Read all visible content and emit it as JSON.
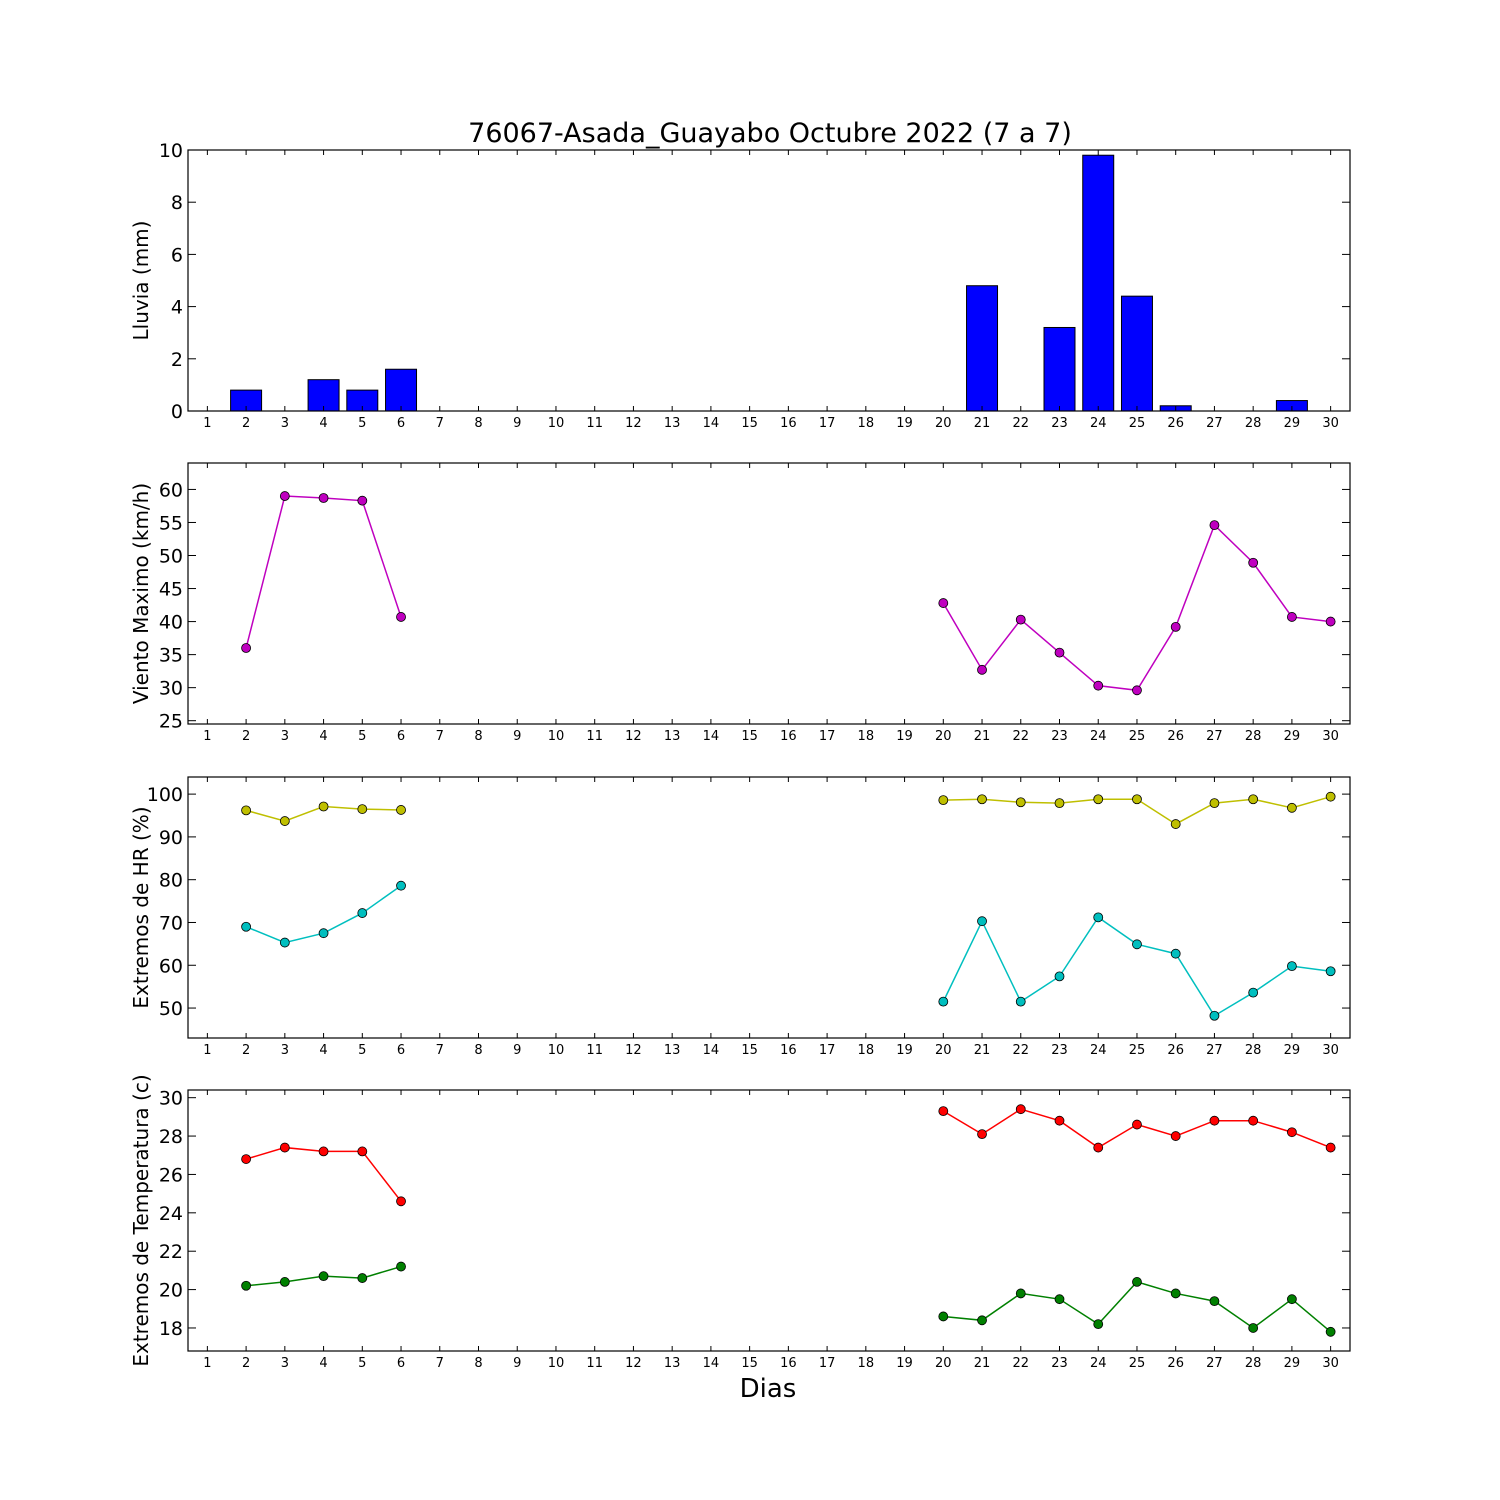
{
  "title": "76067-Asada_Guayabo Octubre 2022  (7 a 7)",
  "xlabel": "Dias",
  "colors": {
    "rain": "#0000ff",
    "wind": "#bf00bf",
    "hr_max": "#bfbf00",
    "hr_min": "#00bfbf",
    "temp_max": "#ff0000",
    "temp_min": "#008000"
  },
  "chart_data": [
    {
      "type": "bar",
      "ylabel": "Lluvia (mm)",
      "ylim": [
        0,
        10
      ],
      "yticks": [
        0,
        2,
        4,
        6,
        8,
        10
      ],
      "xlim": [
        0.5,
        30.5
      ],
      "x": [
        1,
        2,
        3,
        4,
        5,
        6,
        7,
        8,
        9,
        10,
        11,
        12,
        13,
        14,
        15,
        16,
        17,
        18,
        19,
        20,
        21,
        22,
        23,
        24,
        25,
        26,
        27,
        28,
        29,
        30
      ],
      "series": [
        {
          "color": "#0000ff",
          "values": [
            0,
            0.8,
            0,
            1.2,
            0.8,
            1.6,
            null,
            null,
            null,
            null,
            null,
            null,
            null,
            null,
            null,
            null,
            null,
            null,
            null,
            0,
            4.8,
            0,
            3.2,
            9.8,
            4.4,
            0.2,
            0,
            0,
            0.4,
            0
          ]
        }
      ]
    },
    {
      "type": "line",
      "ylabel": "Viento Maximo (km/h)",
      "ylim": [
        24.5,
        64
      ],
      "yticks": [
        25,
        30,
        35,
        40,
        45,
        50,
        55,
        60
      ],
      "xlim": [
        0.5,
        30.5
      ],
      "x": [
        1,
        2,
        3,
        4,
        5,
        6,
        7,
        8,
        9,
        10,
        11,
        12,
        13,
        14,
        15,
        16,
        17,
        18,
        19,
        20,
        21,
        22,
        23,
        24,
        25,
        26,
        27,
        28,
        29,
        30
      ],
      "series": [
        {
          "color": "#bf00bf",
          "values": [
            null,
            36.0,
            59.0,
            58.7,
            58.3,
            40.7,
            null,
            null,
            null,
            null,
            null,
            null,
            null,
            null,
            null,
            null,
            null,
            null,
            null,
            42.8,
            32.7,
            40.3,
            35.3,
            30.3,
            29.6,
            39.2,
            54.6,
            48.9,
            40.7,
            40.0
          ]
        }
      ]
    },
    {
      "type": "line",
      "ylabel": "Extremos de HR (%)",
      "ylim": [
        43,
        104
      ],
      "yticks": [
        50,
        60,
        70,
        80,
        90,
        100
      ],
      "xlim": [
        0.5,
        30.5
      ],
      "x": [
        1,
        2,
        3,
        4,
        5,
        6,
        7,
        8,
        9,
        10,
        11,
        12,
        13,
        14,
        15,
        16,
        17,
        18,
        19,
        20,
        21,
        22,
        23,
        24,
        25,
        26,
        27,
        28,
        29,
        30
      ],
      "series": [
        {
          "color": "#bfbf00",
          "values": [
            null,
            96.2,
            93.7,
            97.1,
            96.5,
            96.3,
            null,
            null,
            null,
            null,
            null,
            null,
            null,
            null,
            null,
            null,
            null,
            null,
            null,
            98.6,
            98.8,
            98.1,
            97.9,
            98.8,
            98.8,
            93.0,
            97.9,
            98.8,
            96.8,
            99.4
          ]
        },
        {
          "color": "#00bfbf",
          "values": [
            null,
            69.0,
            65.3,
            67.5,
            72.2,
            78.6,
            null,
            null,
            null,
            null,
            null,
            null,
            null,
            null,
            null,
            null,
            null,
            null,
            null,
            51.5,
            70.3,
            51.5,
            57.4,
            71.2,
            64.9,
            62.7,
            48.2,
            53.6,
            59.8,
            58.6
          ]
        }
      ]
    },
    {
      "type": "line",
      "ylabel": "Extremos de Temperatura (c)",
      "ylim": [
        16.8,
        30.4
      ],
      "yticks": [
        18,
        20,
        22,
        24,
        26,
        28,
        30
      ],
      "xlim": [
        0.5,
        30.5
      ],
      "x": [
        1,
        2,
        3,
        4,
        5,
        6,
        7,
        8,
        9,
        10,
        11,
        12,
        13,
        14,
        15,
        16,
        17,
        18,
        19,
        20,
        21,
        22,
        23,
        24,
        25,
        26,
        27,
        28,
        29,
        30
      ],
      "series": [
        {
          "color": "#ff0000",
          "values": [
            null,
            26.8,
            27.4,
            27.2,
            27.2,
            24.6,
            null,
            null,
            null,
            null,
            null,
            null,
            null,
            null,
            null,
            null,
            null,
            null,
            null,
            29.3,
            28.1,
            29.4,
            28.8,
            27.4,
            28.6,
            28.0,
            28.8,
            28.8,
            28.2,
            27.4
          ]
        },
        {
          "color": "#008000",
          "values": [
            null,
            20.2,
            20.4,
            20.7,
            20.6,
            21.2,
            null,
            null,
            null,
            null,
            null,
            null,
            null,
            null,
            null,
            null,
            null,
            null,
            null,
            18.6,
            18.4,
            19.8,
            19.5,
            18.2,
            20.4,
            19.8,
            19.4,
            18.0,
            19.5,
            17.8
          ]
        }
      ]
    }
  ]
}
